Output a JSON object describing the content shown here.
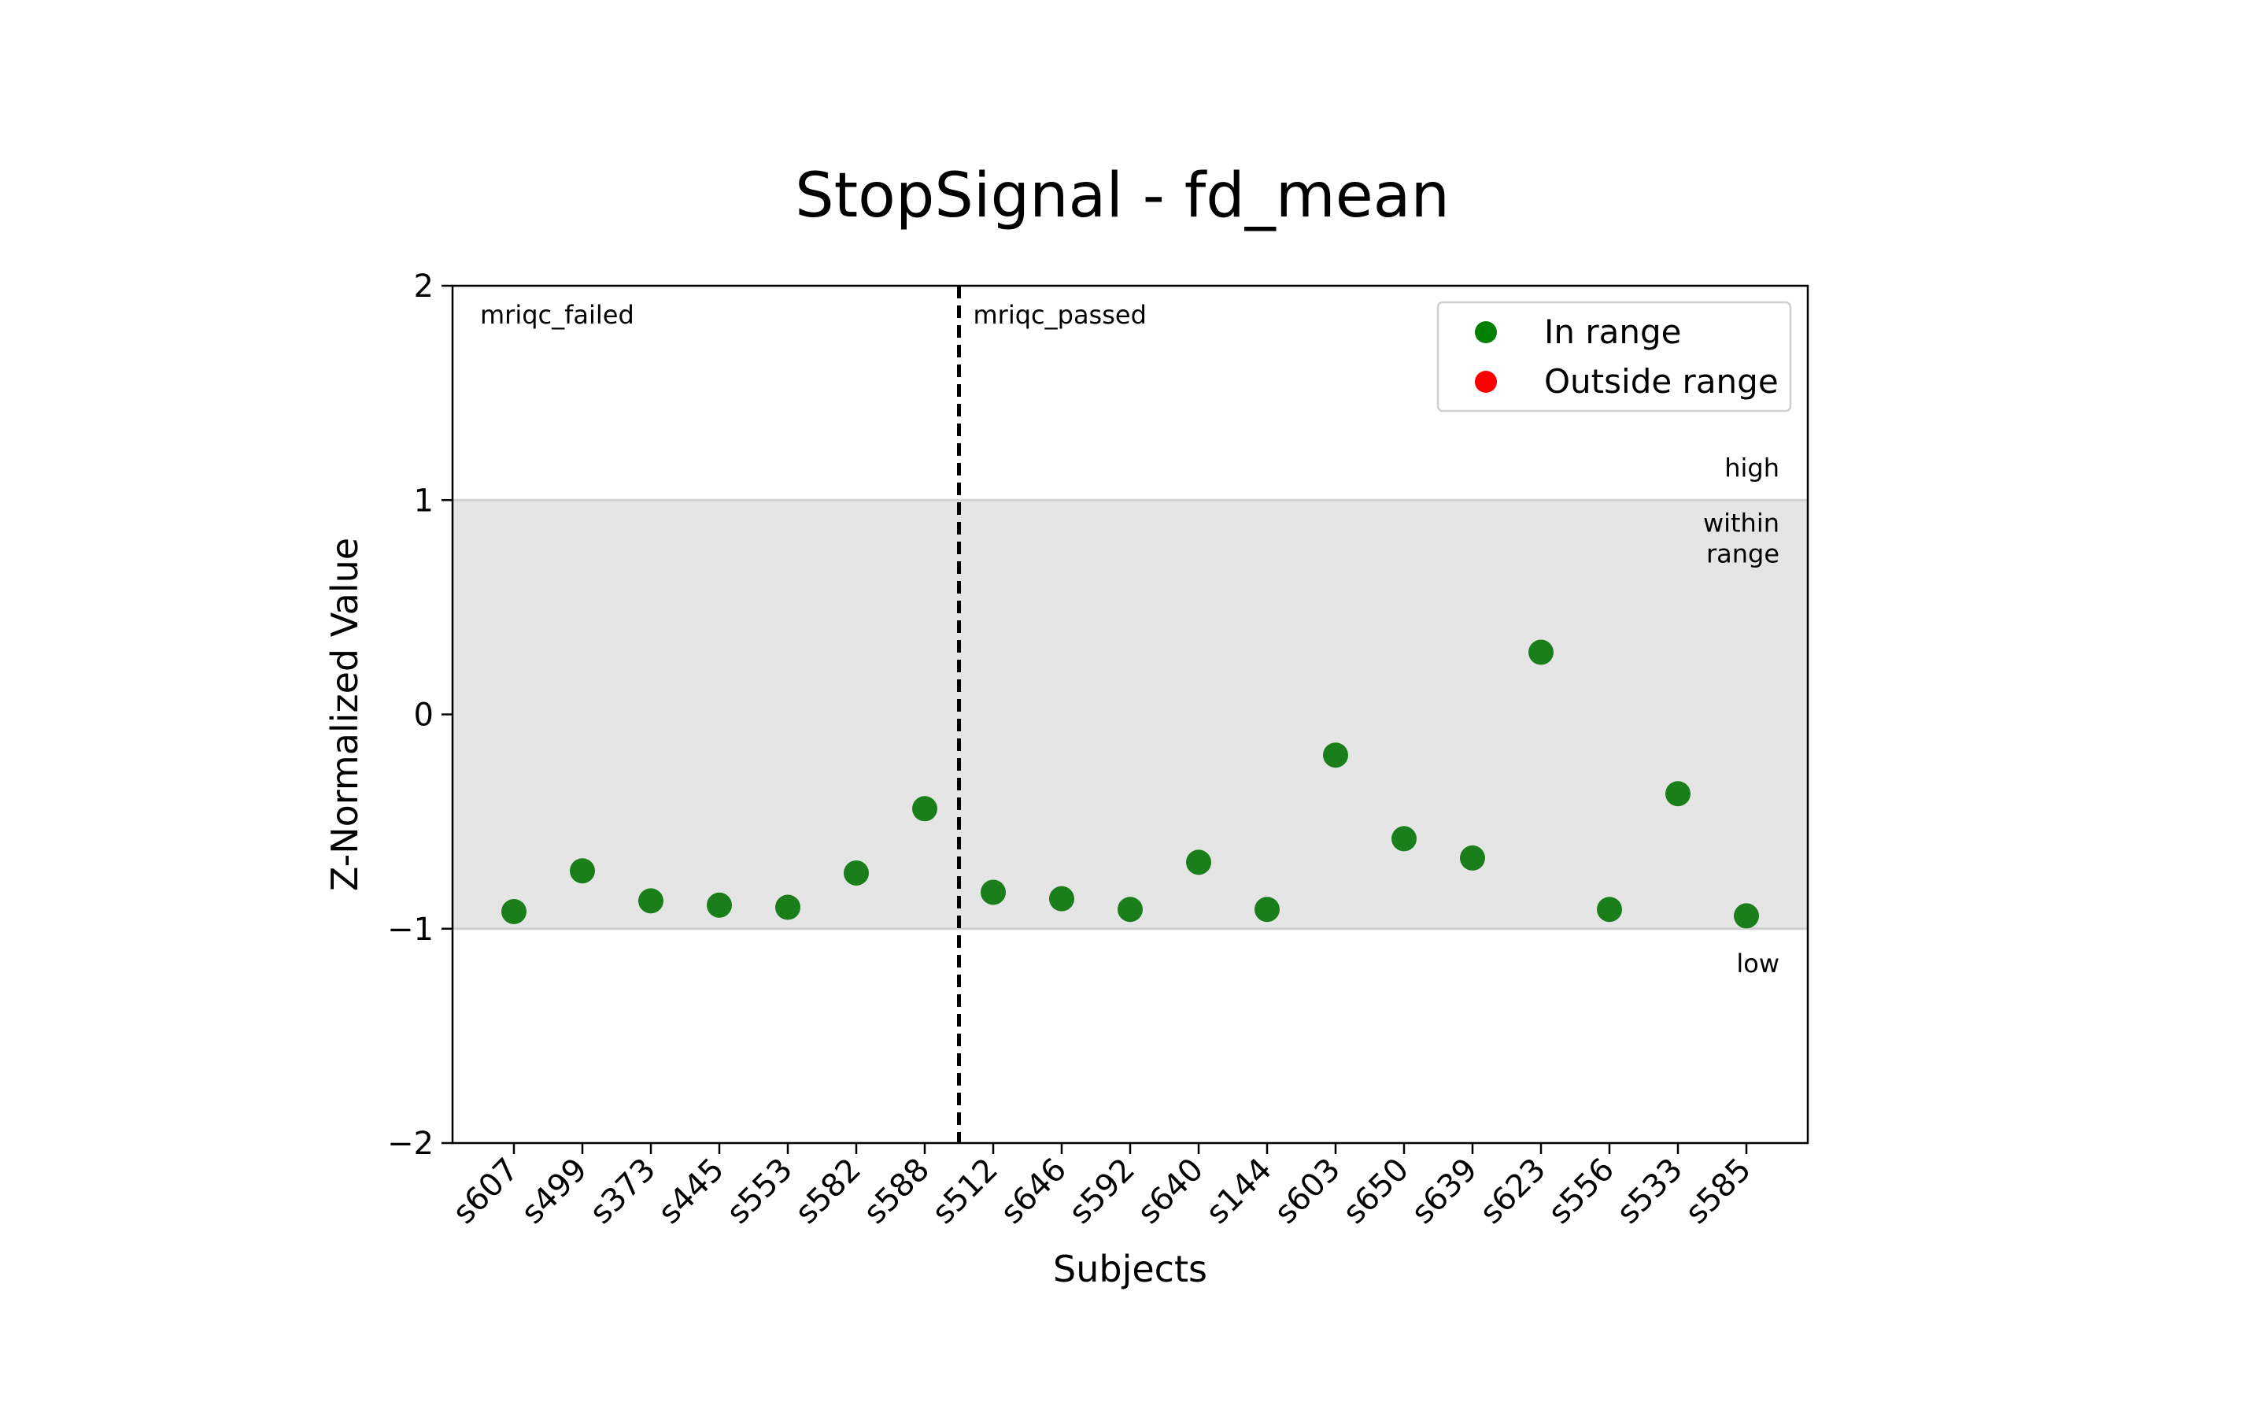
{
  "chart_data": {
    "type": "scatter",
    "title": "StopSignal - fd_mean",
    "xlabel": "Subjects",
    "ylabel": "Z-Normalized Value",
    "ylim": [
      -2,
      2
    ],
    "yticks": [
      2,
      1,
      0,
      -1,
      -2
    ],
    "ytick_labels": [
      "2",
      "1",
      "0",
      "−1",
      "−2"
    ],
    "grid": false,
    "categories": [
      "s607",
      "s499",
      "s373",
      "s445",
      "s553",
      "s582",
      "s588",
      "s512",
      "s646",
      "s592",
      "s640",
      "s144",
      "s603",
      "s650",
      "s639",
      "s623",
      "s556",
      "s533",
      "s585"
    ],
    "values": [
      -0.92,
      -0.73,
      -0.87,
      -0.89,
      -0.9,
      -0.74,
      -0.44,
      -0.83,
      -0.86,
      -0.91,
      -0.69,
      -0.91,
      -0.19,
      -0.58,
      -0.67,
      0.29,
      -0.91,
      -0.37,
      -0.94
    ],
    "status": [
      "in",
      "in",
      "in",
      "in",
      "in",
      "in",
      "in",
      "in",
      "in",
      "in",
      "in",
      "in",
      "in",
      "in",
      "in",
      "in",
      "in",
      "in",
      "in"
    ],
    "range_band": {
      "low": -1,
      "high": 1,
      "color": "#e5e5e5"
    },
    "band_labels": {
      "high": "high",
      "within_line1": "within",
      "within_line2": "range",
      "low": "low"
    },
    "groups": [
      {
        "label": "mriqc_failed"
      },
      {
        "label": "mriqc_passed"
      }
    ],
    "group_divider_after_index": 6.5,
    "legend": {
      "position": "upper-right",
      "entries": [
        {
          "label": "In range",
          "color": "#008000"
        },
        {
          "label": "Outside range",
          "color": "#ff0000"
        }
      ]
    },
    "colors": {
      "in_range": "#1a7f1a",
      "outside_range": "#ff0000"
    }
  }
}
